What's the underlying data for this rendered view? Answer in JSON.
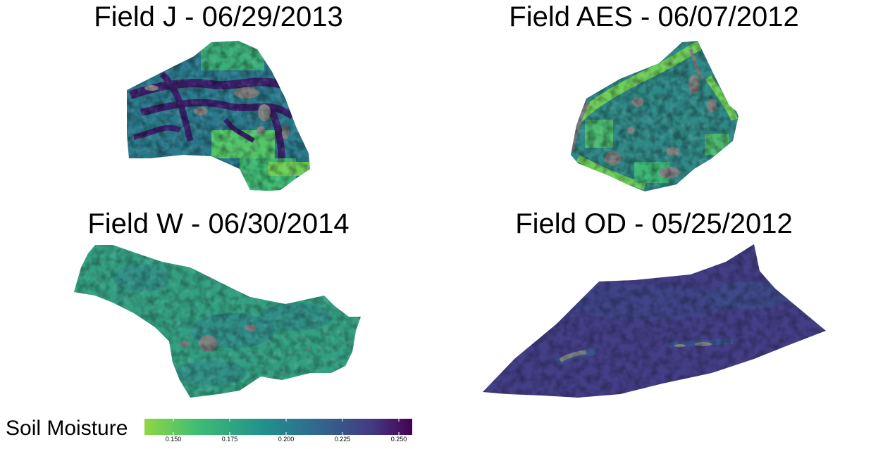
{
  "panels": [
    {
      "title": "Field J - 06/29/2013"
    },
    {
      "title": "Field AES - 06/07/2012"
    },
    {
      "title": "Field W - 06/30/2014"
    },
    {
      "title": "Field OD - 05/25/2012"
    }
  ],
  "legend": {
    "title": "Soil Moisture",
    "ticks": [
      "0.150",
      "0.175",
      "0.200",
      "0.225",
      "0.250"
    ],
    "min": 0.137,
    "max": 0.256,
    "tick_values": [
      0.15,
      0.175,
      0.2,
      0.225,
      0.25
    ]
  },
  "colors": {
    "missing": "#808080",
    "scale": [
      "#8fd744",
      "#3fbc73",
      "#21908d",
      "#31688e",
      "#443a83",
      "#440154"
    ]
  }
}
